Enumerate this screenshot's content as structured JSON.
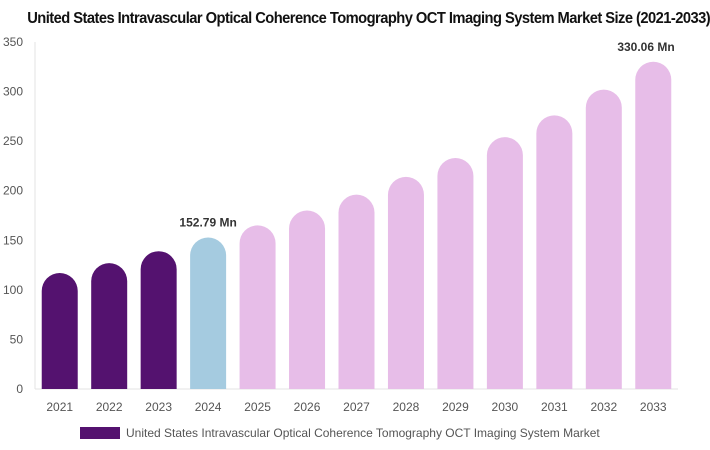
{
  "chart_data": {
    "type": "bar",
    "title": "United States Intravascular Optical Coherence Tomography OCT Imaging System Market Size (2021-2033)",
    "categories": [
      "2021",
      "2022",
      "2023",
      "2024",
      "2025",
      "2026",
      "2027",
      "2028",
      "2029",
      "2030",
      "2031",
      "2032",
      "2033"
    ],
    "series": [
      {
        "name": "United States Intravascular Optical Coherence Tomography OCT Imaging System Market",
        "values": [
          117,
          127,
          139,
          152.79,
          165,
          180,
          196,
          214,
          233,
          254,
          276,
          302,
          330.06
        ]
      }
    ],
    "point_colors": [
      "#54126f",
      "#54126f",
      "#54126f",
      "#a5cbe0",
      "#e7bde8",
      "#e7bde8",
      "#e7bde8",
      "#e7bde8",
      "#e7bde8",
      "#e7bde8",
      "#e7bde8",
      "#e7bde8",
      "#e7bde8"
    ],
    "data_labels": [
      {
        "index": 3,
        "text": "152.79 Mn"
      },
      {
        "index": 12,
        "text": "330.06 Mn"
      }
    ],
    "ylim": [
      0,
      350
    ],
    "yticks": [
      0,
      50,
      100,
      150,
      200,
      250,
      300,
      350
    ],
    "grid": false,
    "legend": {
      "position": "bottom-left",
      "color": "#54126f",
      "label": "United States Intravascular Optical Coherence Tomography OCT Imaging System Market"
    },
    "xlabel": "",
    "ylabel": ""
  }
}
